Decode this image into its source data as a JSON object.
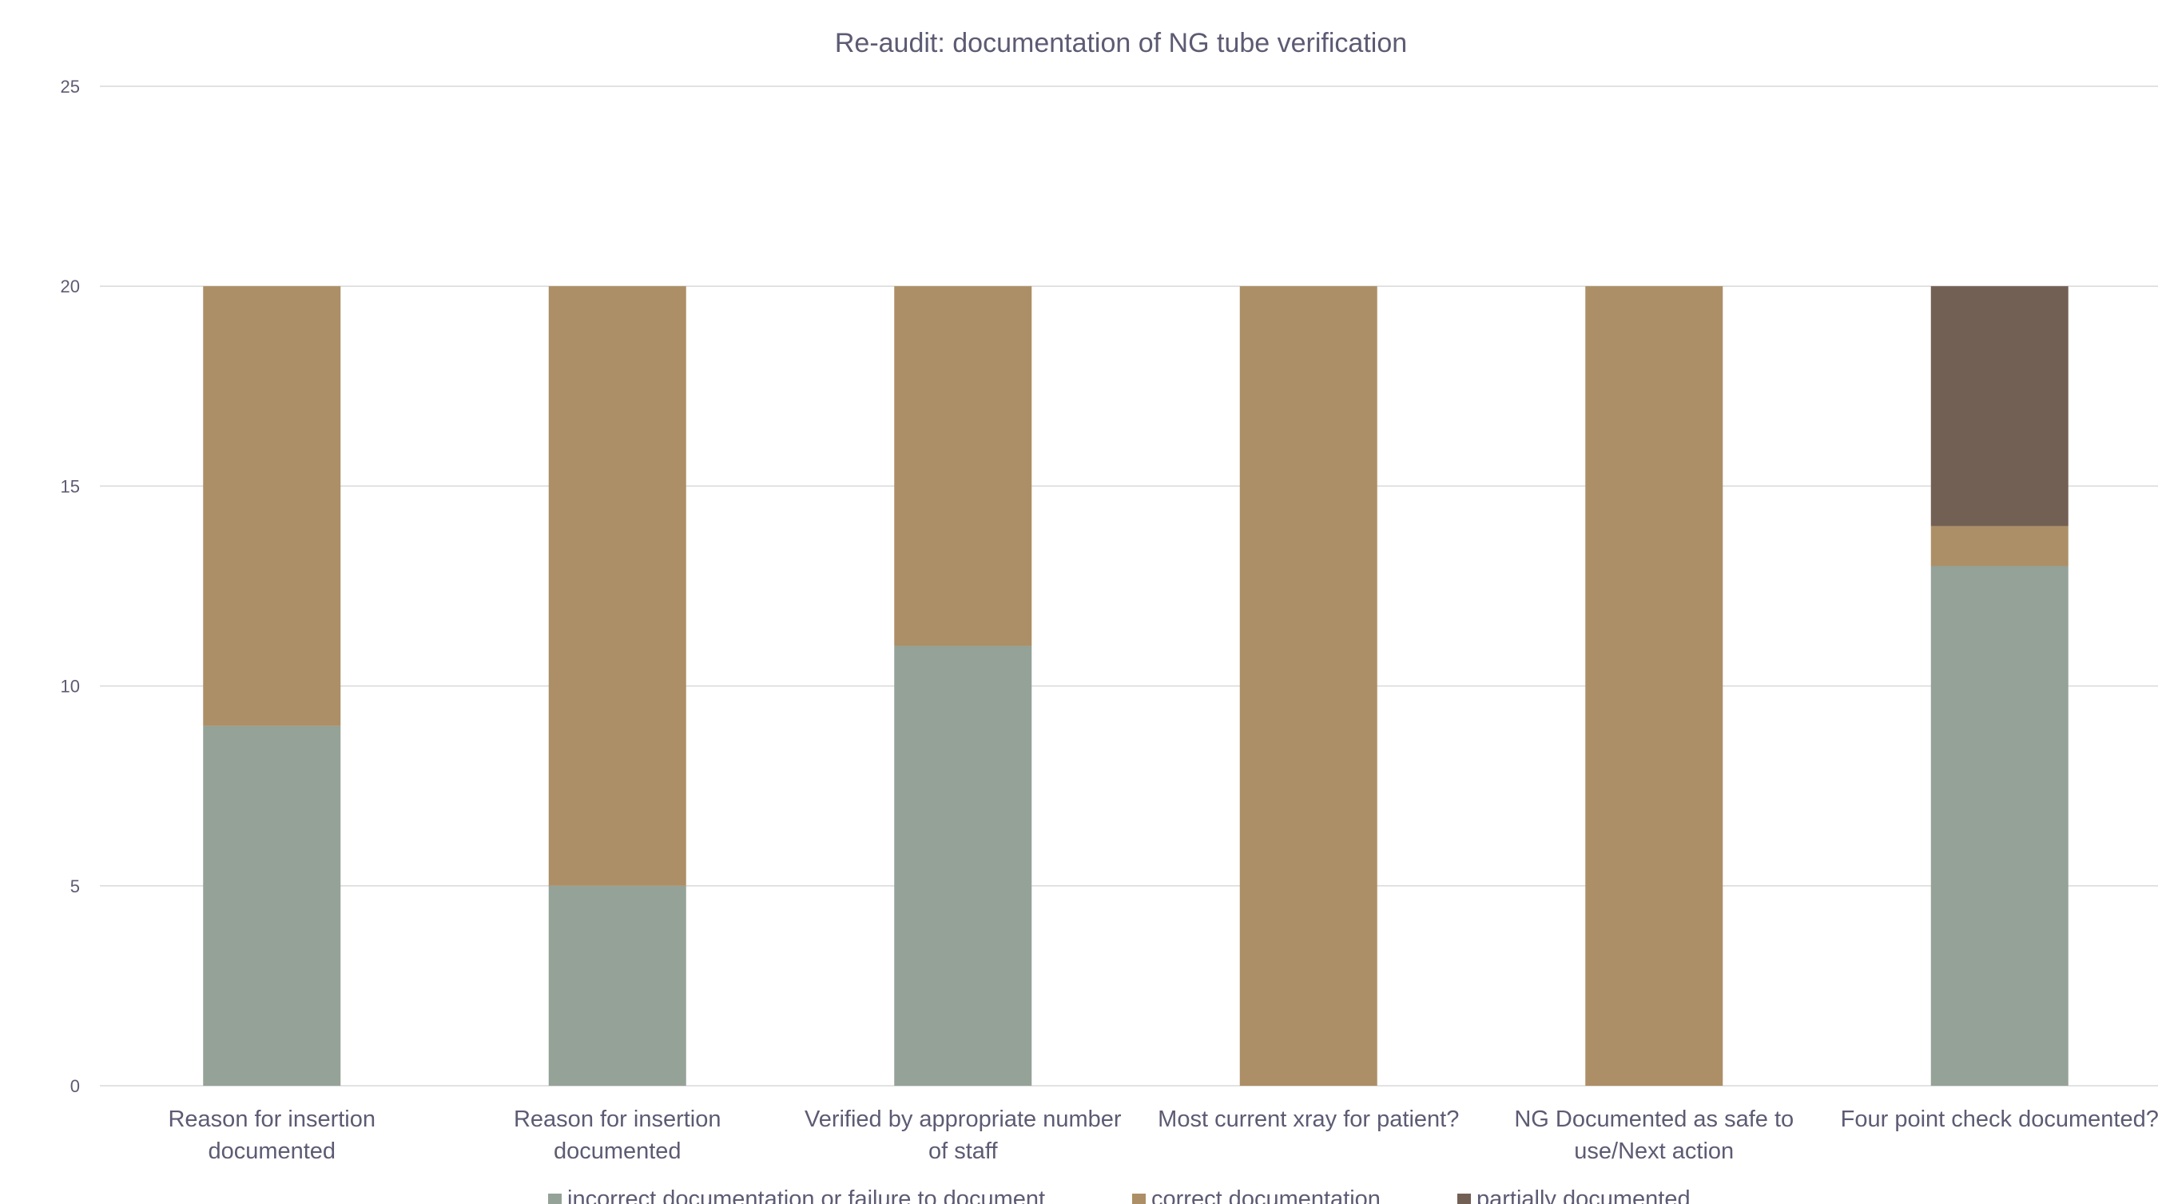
{
  "chart_data": {
    "type": "bar",
    "stacked": true,
    "title": "Re-audit: documentation of NG tube verification",
    "xlabel": "",
    "ylabel": "",
    "ylim": [
      0,
      25
    ],
    "yticks": [
      0,
      5,
      10,
      15,
      20,
      25
    ],
    "grid": true,
    "legend_position": "bottom",
    "categories": [
      [
        "Reason for insertion",
        "documented"
      ],
      [
        "Reason for insertion",
        "documented"
      ],
      [
        "Verified by appropriate number",
        "of staff"
      ],
      [
        "Most current xray for patient?"
      ],
      [
        "NG Documented as safe to",
        "use/Next action"
      ],
      [
        "Four point check documented?"
      ]
    ],
    "series": [
      {
        "name": "incorrect documentation or failure to document",
        "color": "#94a298",
        "values": [
          9,
          5,
          11,
          0,
          0,
          13
        ]
      },
      {
        "name": "correct documentation",
        "color": "#ac8f66",
        "values": [
          11,
          15,
          9,
          20,
          20,
          1
        ]
      },
      {
        "name": "partially documented",
        "color": "#736055",
        "values": [
          0,
          0,
          0,
          0,
          0,
          6
        ]
      }
    ],
    "colors": {
      "text": "#5d5b73",
      "grid": "#d9d9d9"
    }
  }
}
